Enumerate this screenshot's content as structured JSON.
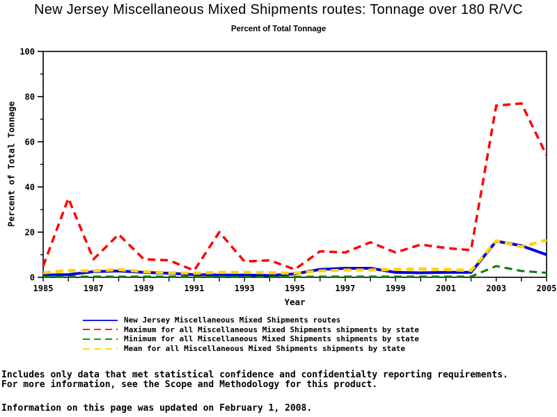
{
  "title": "New Jersey Miscellaneous Mixed Shipments routes: Tonnage over 180 R/VC",
  "subtitle": "Percent of Total Tonnage",
  "footnotes": {
    "line1": "Includes only data that met statistical confidence and confidentialty reporting requirements.",
    "line2": "For more information, see the Scope and Methodology for this product.",
    "updated": "Information on this page was updated on February 1, 2008."
  },
  "chart_data": {
    "type": "line",
    "title": "New Jersey Miscellaneous Mixed Shipments routes: Tonnage over 180 R/VC",
    "subtitle": "Percent of Total Tonnage",
    "xlabel": "Year",
    "ylabel": "Percent of Total Tonnage",
    "xlim": [
      1985,
      2005
    ],
    "ylim": [
      0,
      100
    ],
    "grid": false,
    "legend_position": "bottom",
    "axis_color": "#000000",
    "y_major_ticks": [
      0,
      20,
      40,
      60,
      80,
      100
    ],
    "y_minor_ticks": [
      10,
      30,
      50,
      70,
      90
    ],
    "x_minor_tick_step": 1,
    "x_labeled_ticks": [
      1985,
      1987,
      1989,
      1991,
      1993,
      1995,
      1997,
      1999,
      2001,
      2003,
      2005
    ],
    "x": [
      1985,
      1986,
      1987,
      1988,
      1989,
      1990,
      1991,
      1992,
      1993,
      1994,
      1995,
      1996,
      1997,
      1998,
      1999,
      2000,
      2001,
      2002,
      2003,
      2004,
      2005
    ],
    "series": [
      {
        "name": "New Jersey Miscellaneous Mixed Shipments routes",
        "color": "#0000dd",
        "style": "solid",
        "width": 4,
        "values": [
          1.0,
          1.2,
          2.5,
          2.8,
          2.2,
          1.8,
          1.2,
          1.0,
          1.0,
          0.8,
          1.5,
          3.5,
          4.0,
          4.0,
          2.2,
          2.0,
          2.2,
          2.2,
          16.0,
          14.0,
          10.0
        ]
      },
      {
        "name": "Maximum for all Miscellaneous Mixed Shipments shipments by state",
        "color": "#ff0000",
        "style": "dashed",
        "width": 3.5,
        "values": [
          5.0,
          35.0,
          8.0,
          19.0,
          8.0,
          7.5,
          3.0,
          20.0,
          7.0,
          7.5,
          3.5,
          11.5,
          11.0,
          15.5,
          11.0,
          14.5,
          13.0,
          12.0,
          76.0,
          77.0,
          54.0
        ]
      },
      {
        "name": "Minimum for all Miscellaneous Mixed Shipments shipments by state",
        "color": "#007d00",
        "style": "dashed",
        "width": 3,
        "values": [
          0.3,
          0.3,
          0.3,
          0.3,
          0.3,
          0.3,
          0.3,
          0.3,
          0.2,
          0.2,
          0.2,
          0.3,
          0.3,
          0.3,
          0.3,
          0.3,
          0.3,
          0.3,
          5.0,
          2.8,
          2.0
        ]
      },
      {
        "name": "Mean for all Miscellaneous Mixed Shipments shipments by state",
        "color": "#ffd300",
        "style": "dashed",
        "width": 4.5,
        "values": [
          2.0,
          3.0,
          2.8,
          3.4,
          2.5,
          2.0,
          1.8,
          2.2,
          2.2,
          2.0,
          1.8,
          2.8,
          3.2,
          3.2,
          3.5,
          3.7,
          3.4,
          3.0,
          16.2,
          13.5,
          16.5
        ]
      }
    ]
  }
}
